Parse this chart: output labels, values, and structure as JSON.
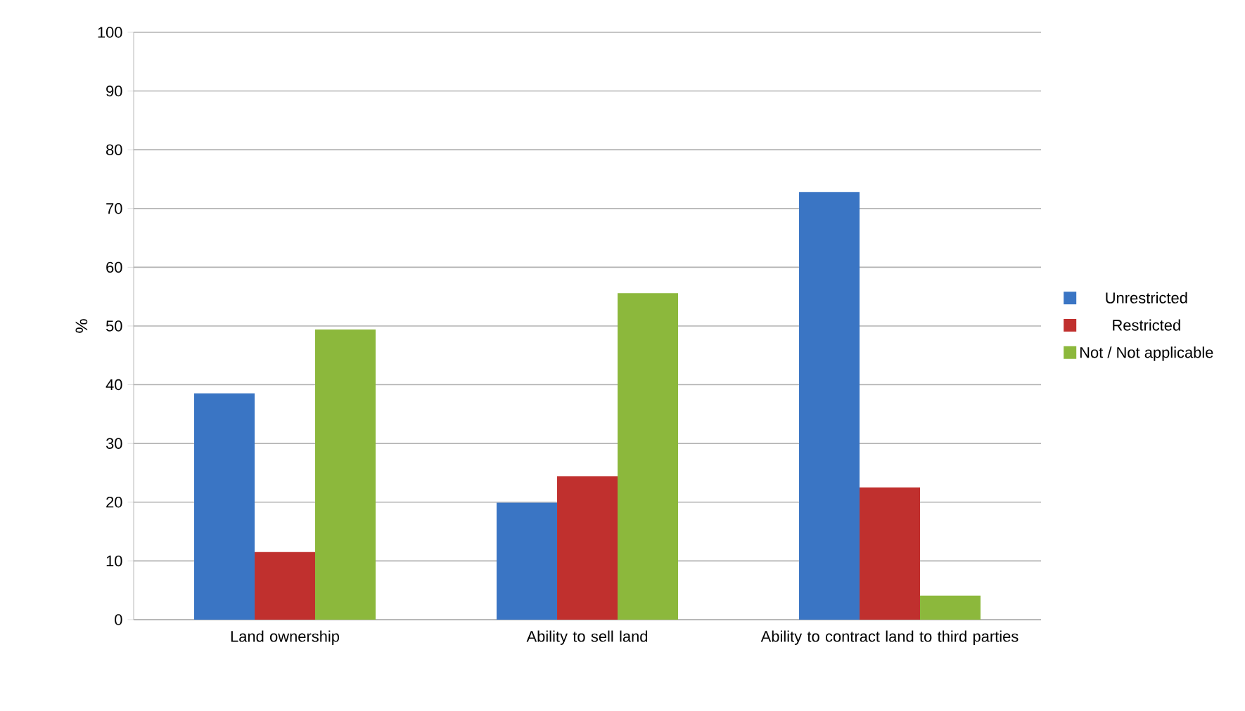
{
  "chart_data": {
    "type": "bar",
    "ylabel": "%",
    "categories": [
      "Land ownership",
      "Ability to sell land",
      "Ability to contract land to third parties"
    ],
    "series": [
      {
        "name": "Unrestricted",
        "color": "#3a75c4",
        "values": [
          38.5,
          19.9,
          72.8
        ]
      },
      {
        "name": "Restricted",
        "color": "#c0302e",
        "values": [
          11.5,
          24.4,
          22.5
        ]
      },
      {
        "name": "Not / Not applicable",
        "color": "#8cb83c",
        "values": [
          49.4,
          55.6,
          4.1
        ]
      }
    ],
    "ylim": [
      0,
      100
    ],
    "yticks": [
      0,
      10,
      20,
      30,
      40,
      50,
      60,
      70,
      80,
      90,
      100
    ],
    "grid": "y",
    "legend": "right"
  }
}
